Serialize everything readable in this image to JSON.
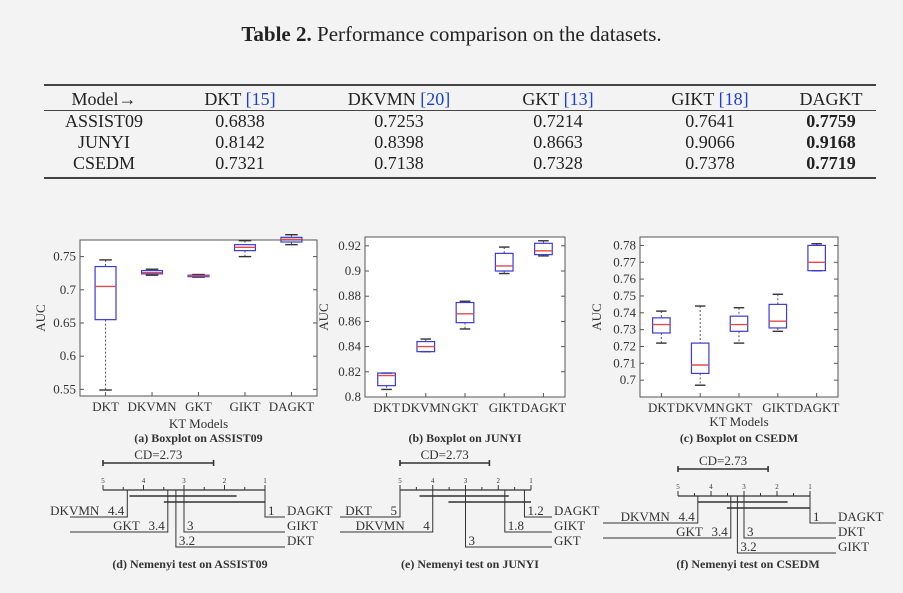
{
  "table": {
    "caption_label": "Table 2.",
    "caption_text": " Performance comparison on the datasets.",
    "header_first": "Model→",
    "columns": [
      {
        "name": "DKT",
        "cite": "[15]"
      },
      {
        "name": "DKVMN",
        "cite": "[20]"
      },
      {
        "name": "GKT",
        "cite": "[13]"
      },
      {
        "name": "GIKT",
        "cite": "[18]"
      },
      {
        "name": "DAGKT",
        "cite": ""
      }
    ],
    "rows": [
      {
        "dataset": "ASSIST09",
        "values": [
          "0.6838",
          "0.7253",
          "0.7214",
          "0.7641",
          "0.7759"
        ]
      },
      {
        "dataset": "JUNYI",
        "values": [
          "0.8142",
          "0.8398",
          "0.8663",
          "0.9066",
          "0.9168"
        ]
      },
      {
        "dataset": "CSEDM",
        "values": [
          "0.7321",
          "0.7138",
          "0.7328",
          "0.7378",
          "0.7719"
        ]
      }
    ]
  },
  "colors": {
    "box": "#3b3bd6",
    "median": "#e04a4a",
    "whisker": "#555555"
  },
  "chart_data": [
    {
      "type": "boxplot",
      "categories": [
        "DKT",
        "DKVMN",
        "GKT",
        "GIKT",
        "DAGKT"
      ],
      "xlabel": "KT Models",
      "ylabel": "AUC",
      "ylim": [
        0.54,
        0.775
      ],
      "yticks": [
        0.55,
        0.6,
        0.65,
        0.7,
        0.75
      ],
      "ytick_labels": [
        "0.55",
        "0.6",
        "0.65",
        "0.7",
        "0.75"
      ],
      "boxes": [
        {
          "min": 0.549,
          "q1": 0.655,
          "median": 0.705,
          "q3": 0.735,
          "max": 0.745
        },
        {
          "min": 0.722,
          "q1": 0.724,
          "median": 0.726,
          "q3": 0.729,
          "max": 0.731
        },
        {
          "min": 0.719,
          "q1": 0.72,
          "median": 0.721,
          "q3": 0.722,
          "max": 0.723
        },
        {
          "min": 0.75,
          "q1": 0.759,
          "median": 0.764,
          "q3": 0.768,
          "max": 0.774
        },
        {
          "min": 0.768,
          "q1": 0.772,
          "median": 0.776,
          "q3": 0.779,
          "max": 0.783
        }
      ],
      "caption_tag": "(a)",
      "caption": "Boxplot on ASSIST09"
    },
    {
      "type": "boxplot",
      "categories": [
        "DKT",
        "DKVMN",
        "GKT",
        "GIKT",
        "DAGKT"
      ],
      "xlabel": "",
      "ylabel": "AUC",
      "ylim": [
        0.8,
        0.927
      ],
      "yticks": [
        0.8,
        0.82,
        0.84,
        0.86,
        0.88,
        0.9,
        0.92
      ],
      "ytick_labels": [
        "0.8",
        "0.82",
        "0.84",
        "0.86",
        "0.88",
        "0.9",
        "0.92"
      ],
      "boxes": [
        {
          "min": 0.806,
          "q1": 0.809,
          "median": 0.817,
          "q3": 0.819,
          "max": 0.819
        },
        {
          "min": 0.836,
          "q1": 0.836,
          "median": 0.84,
          "q3": 0.844,
          "max": 0.846
        },
        {
          "min": 0.854,
          "q1": 0.859,
          "median": 0.866,
          "q3": 0.875,
          "max": 0.876
        },
        {
          "min": 0.898,
          "q1": 0.9,
          "median": 0.904,
          "q3": 0.914,
          "max": 0.919
        },
        {
          "min": 0.912,
          "q1": 0.913,
          "median": 0.916,
          "q3": 0.922,
          "max": 0.924
        }
      ],
      "caption_tag": "(b)",
      "caption": "Boxplot on  JUNYI"
    },
    {
      "type": "boxplot",
      "categories": [
        "DKT",
        "DKVMN",
        "GKT",
        "GIKT",
        "DAGKT"
      ],
      "xlabel": "KT Models",
      "ylabel": "AUC",
      "ylim": [
        0.69,
        0.785
      ],
      "yticks": [
        0.7,
        0.71,
        0.72,
        0.73,
        0.74,
        0.75,
        0.76,
        0.77,
        0.78
      ],
      "ytick_labels": [
        "0.7",
        "0.71",
        "0.72",
        "0.73",
        "0.74",
        "0.75",
        "0.76",
        "0.77",
        "0.78"
      ],
      "boxes": [
        {
          "min": 0.722,
          "q1": 0.728,
          "median": 0.733,
          "q3": 0.737,
          "max": 0.741
        },
        {
          "min": 0.697,
          "q1": 0.704,
          "median": 0.709,
          "q3": 0.722,
          "max": 0.744
        },
        {
          "min": 0.722,
          "q1": 0.729,
          "median": 0.733,
          "q3": 0.738,
          "max": 0.743
        },
        {
          "min": 0.729,
          "q1": 0.731,
          "median": 0.735,
          "q3": 0.745,
          "max": 0.751
        },
        {
          "min": 0.765,
          "q1": 0.765,
          "median": 0.77,
          "q3": 0.78,
          "max": 0.781
        }
      ],
      "caption_tag": "(c)",
      "caption": "Boxplot on CSEDM"
    },
    {
      "type": "cd_diagram",
      "cd_label": "CD=2.73",
      "cd": 2.73,
      "axis_ticks": [
        "5",
        "4",
        "3",
        "2",
        "1"
      ],
      "ranks": [
        {
          "model": "DKVMN",
          "rank": 4.4,
          "label": "4.4",
          "side": "left"
        },
        {
          "model": "GKT",
          "rank": 3.4,
          "label": "3.4",
          "side": "left"
        },
        {
          "model": "DAGKT",
          "rank": 1.0,
          "label": "1",
          "side": "right"
        },
        {
          "model": "GIKT",
          "rank": 3.0,
          "label": "3",
          "side": "right"
        },
        {
          "model": "DKT",
          "rank": 3.2,
          "label": "3.2",
          "side": "right"
        }
      ],
      "caption_tag": "(d)",
      "caption": "Nemenyi test on ASSIST09"
    },
    {
      "type": "cd_diagram",
      "cd_label": "CD=2.73",
      "cd": 2.73,
      "axis_ticks": [
        "5",
        "4",
        "3",
        "2",
        "1"
      ],
      "ranks": [
        {
          "model": "DKT",
          "rank": 5.0,
          "label": "5",
          "side": "left"
        },
        {
          "model": "DKVMN",
          "rank": 4.0,
          "label": "4",
          "side": "left"
        },
        {
          "model": "DAGKT",
          "rank": 1.2,
          "label": "1.2",
          "side": "right"
        },
        {
          "model": "GIKT",
          "rank": 1.8,
          "label": "1.8",
          "side": "right"
        },
        {
          "model": "GKT",
          "rank": 3.0,
          "label": "3",
          "side": "right"
        }
      ],
      "caption_tag": "(e)",
      "caption": "Nemenyi test on  JUNYI"
    },
    {
      "type": "cd_diagram",
      "cd_label": "CD=2.73",
      "cd": 2.73,
      "axis_ticks": [
        "5",
        "4",
        "3",
        "2",
        "1"
      ],
      "ranks": [
        {
          "model": "DKVMN",
          "rank": 4.4,
          "label": "4.4",
          "side": "left"
        },
        {
          "model": "GKT",
          "rank": 3.4,
          "label": "3.4",
          "side": "left"
        },
        {
          "model": "DAGKT",
          "rank": 1.0,
          "label": "1",
          "side": "right"
        },
        {
          "model": "DKT",
          "rank": 3.0,
          "label": "3",
          "side": "right"
        },
        {
          "model": "GIKT",
          "rank": 3.2,
          "label": "3.2",
          "side": "right"
        }
      ],
      "caption_tag": "(f)",
      "caption": "Nemenyi test on  CSEDM"
    }
  ]
}
